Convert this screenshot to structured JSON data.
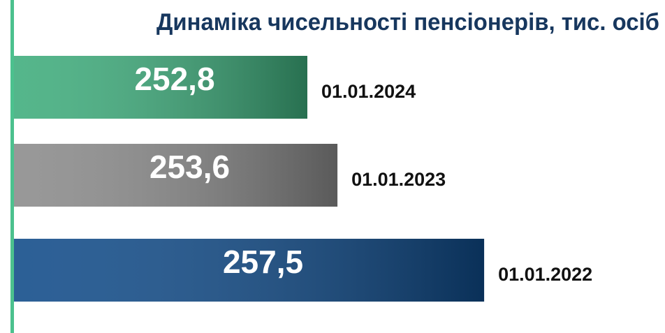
{
  "chart_data": {
    "type": "bar",
    "orientation": "horizontal",
    "title": "Динаміка чисельності пенсіонерів, тис. осіб",
    "categories": [
      "01.01.2024",
      "01.01.2023",
      "01.01.2022"
    ],
    "values": [
      252.8,
      253.6,
      257.5
    ],
    "value_labels": [
      "252,8",
      "253,6",
      "257,5"
    ],
    "colors": [
      "#3dac7b",
      "#8a8a8a",
      "#0f4a88"
    ],
    "xlim": [
      245,
      258
    ]
  }
}
